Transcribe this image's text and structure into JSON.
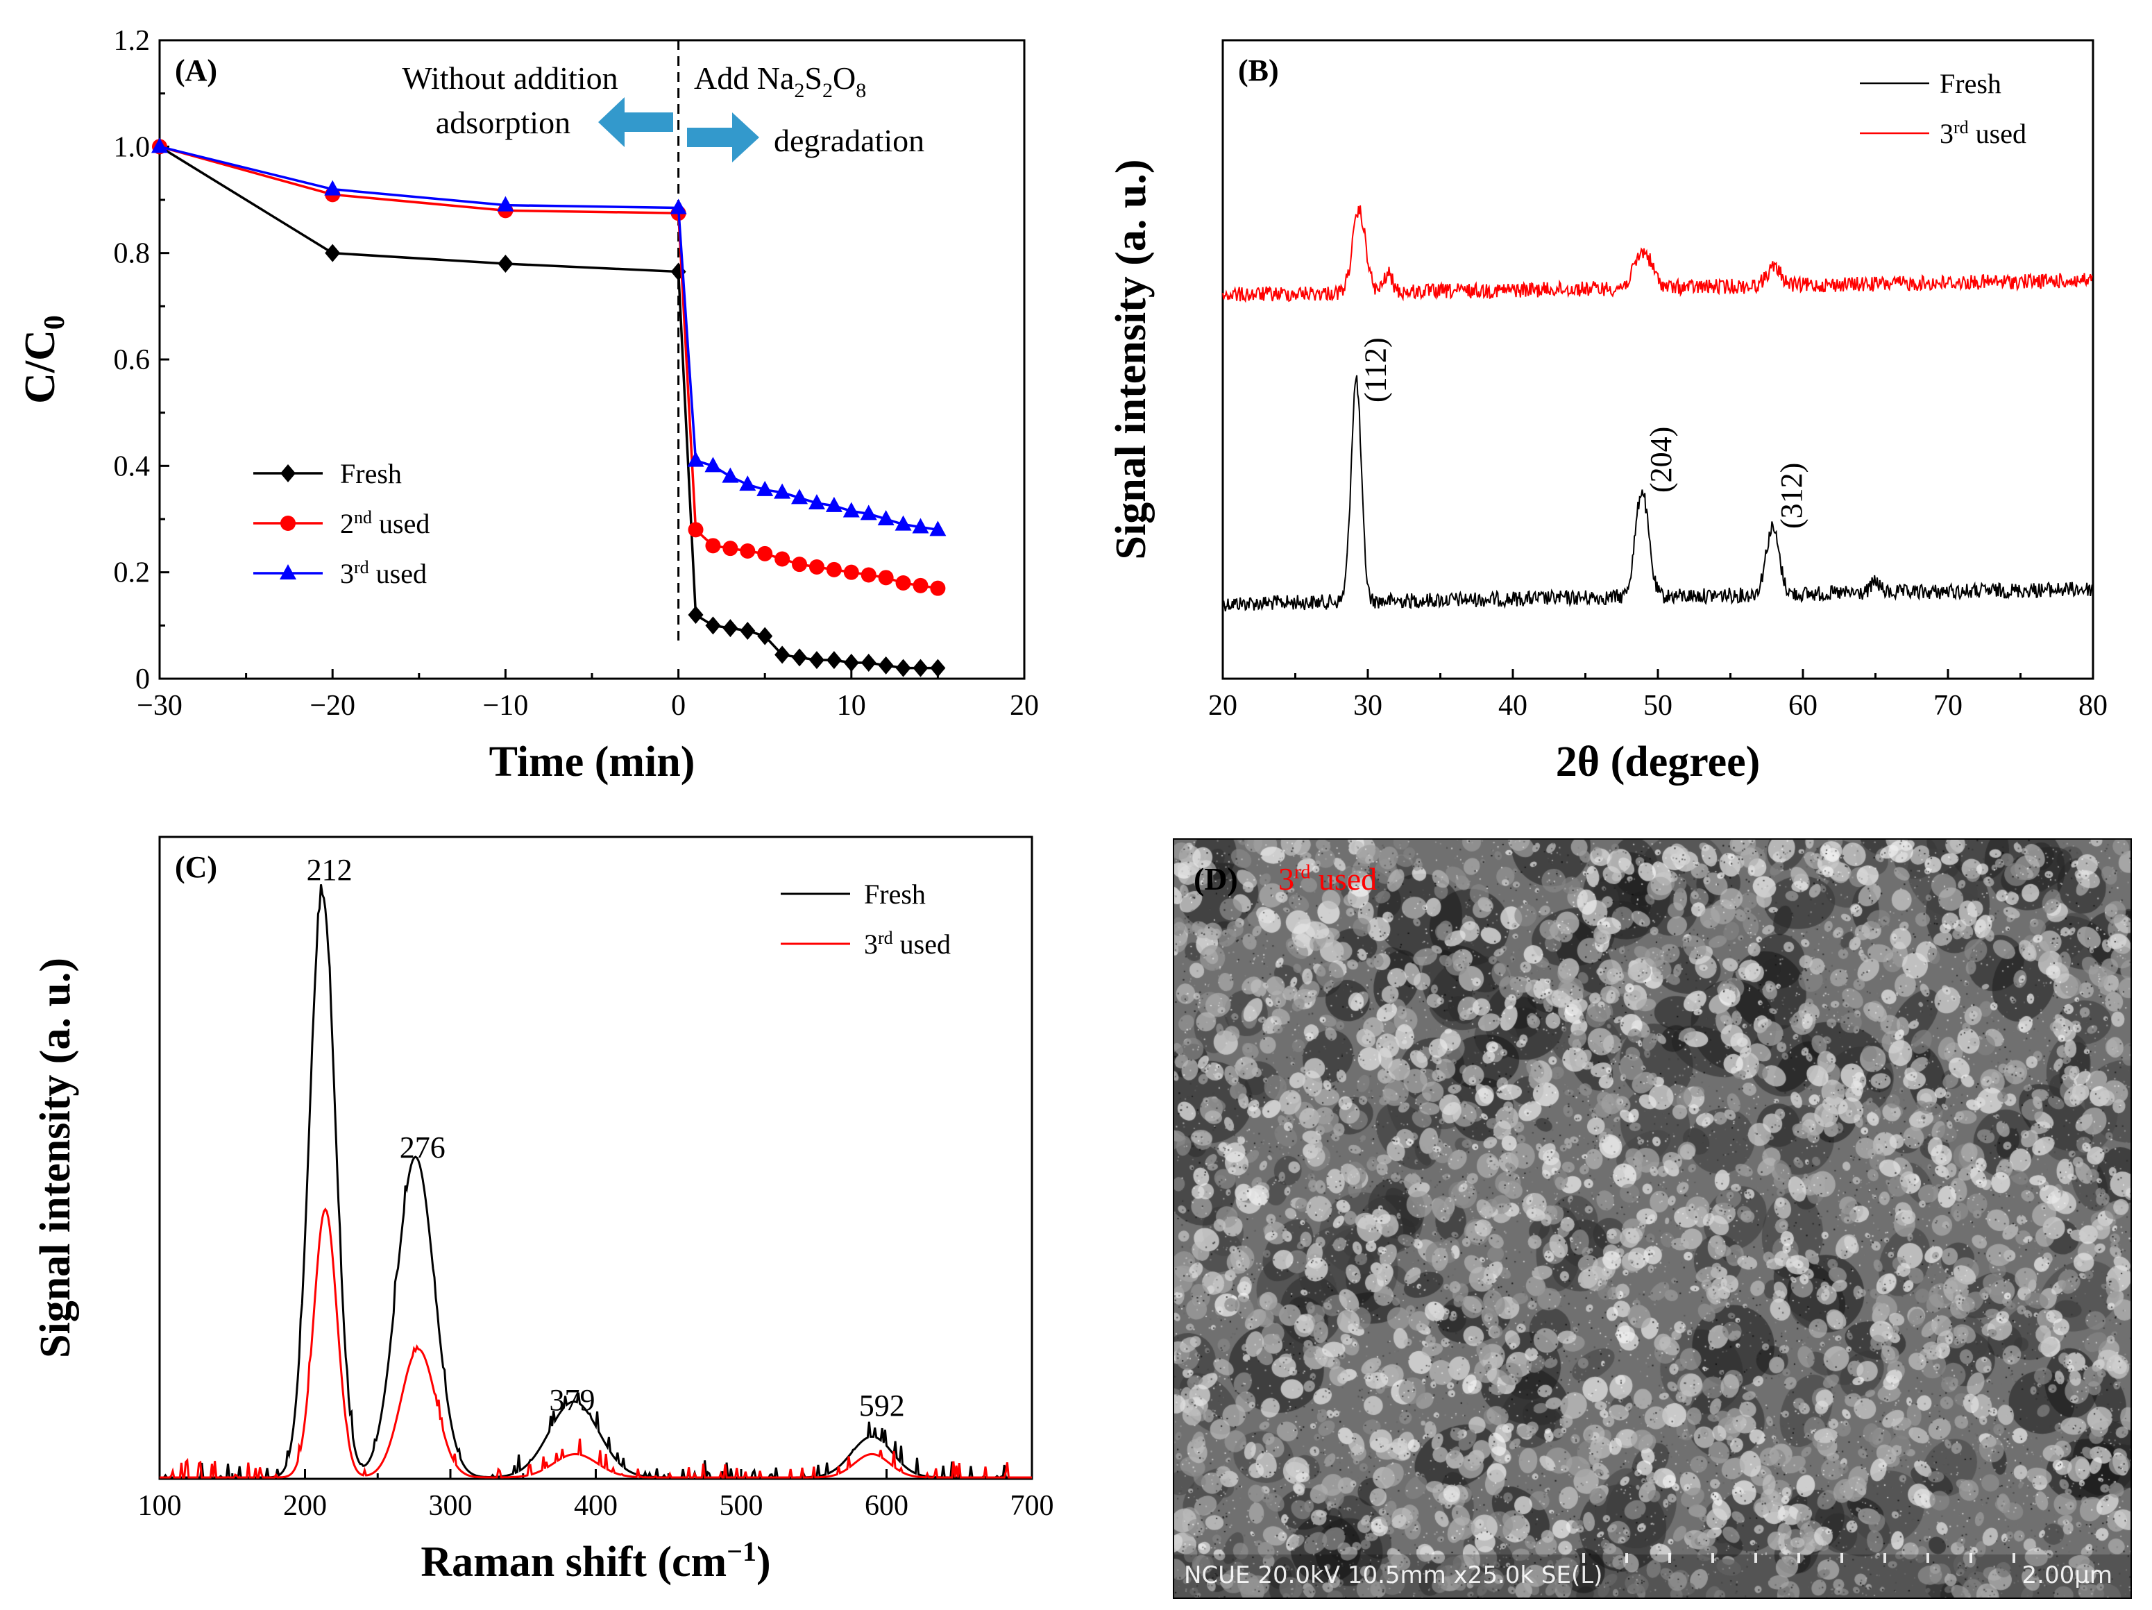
{
  "figure": {
    "colors": {
      "black": "#000000",
      "red": "#ff0000",
      "blue": "#0000ff",
      "arrow": "#3399cc"
    }
  },
  "chart_data": [
    {
      "panel": "(A)",
      "type": "line",
      "xlabel": "Time (min)",
      "ylabel": "C/C",
      "ylabel_sub": "0",
      "xlim": [
        -30,
        20
      ],
      "ylim": [
        0,
        1.2
      ],
      "xticks": [
        "−30",
        "−20",
        "−10",
        "0",
        "10",
        "20"
      ],
      "yticks": [
        "0",
        "0.2",
        "0.4",
        "0.6",
        "0.8",
        "1.0",
        "1.2"
      ],
      "annotation_left": {
        "line1": "Without addition",
        "line2": "adsorption"
      },
      "annotation_right": {
        "line1": "Add Na",
        "sub1": "2",
        "mid": "S",
        "sub2": "2",
        "tail": "O",
        "sub3": "8",
        "line2": "degradation"
      },
      "legend": [
        "Fresh",
        "2",
        "3"
      ],
      "legend_sup": [
        "",
        "nd",
        "rd"
      ],
      "legend_suffix": [
        "",
        " used",
        " used"
      ],
      "series": [
        {
          "name": "Fresh",
          "color": "#000000",
          "marker": "diamond",
          "x": [
            -30,
            -20,
            -10,
            0,
            1,
            2,
            3,
            4,
            5,
            6,
            7,
            8,
            9,
            10,
            11,
            12,
            13,
            14,
            15
          ],
          "y": [
            1.0,
            0.8,
            0.78,
            0.765,
            0.12,
            0.1,
            0.095,
            0.09,
            0.08,
            0.045,
            0.04,
            0.035,
            0.035,
            0.03,
            0.03,
            0.025,
            0.02,
            0.02,
            0.02
          ]
        },
        {
          "name": "2nd used",
          "color": "#ff0000",
          "marker": "circle",
          "x": [
            -30,
            -20,
            -10,
            0,
            1,
            2,
            3,
            4,
            5,
            6,
            7,
            8,
            9,
            10,
            11,
            12,
            13,
            14,
            15
          ],
          "y": [
            1.0,
            0.91,
            0.88,
            0.875,
            0.28,
            0.25,
            0.245,
            0.24,
            0.235,
            0.225,
            0.215,
            0.21,
            0.205,
            0.2,
            0.195,
            0.19,
            0.18,
            0.175,
            0.17
          ]
        },
        {
          "name": "3rd used",
          "color": "#0000ff",
          "marker": "triangle",
          "x": [
            -30,
            -20,
            -10,
            0,
            1,
            2,
            3,
            4,
            5,
            6,
            7,
            8,
            9,
            10,
            11,
            12,
            13,
            14,
            15
          ],
          "y": [
            1.0,
            0.92,
            0.89,
            0.885,
            0.41,
            0.4,
            0.38,
            0.365,
            0.355,
            0.35,
            0.34,
            0.33,
            0.325,
            0.315,
            0.31,
            0.3,
            0.29,
            0.285,
            0.28
          ]
        }
      ]
    },
    {
      "panel": "(B)",
      "type": "line",
      "xlabel": "2θ (degree)",
      "ylabel": "Signal intensity (a. u.)",
      "xlim": [
        20,
        80
      ],
      "xticks": [
        "20",
        "30",
        "40",
        "50",
        "60",
        "70",
        "80"
      ],
      "legend": [
        "Fresh",
        "3"
      ],
      "legend_sup": [
        "",
        "rd"
      ],
      "legend_suffix": [
        "",
        " used"
      ],
      "peak_labels": [
        "(112)",
        "(204)",
        "(312)"
      ],
      "peak_positions": [
        29.2,
        48.9,
        57.9
      ],
      "series": [
        {
          "name": "Fresh",
          "color": "#000000",
          "offset": 0,
          "noise": 1,
          "peaks": [
            {
              "x": 29.2,
              "h": 1.0,
              "w": 0.35
            },
            {
              "x": 48.9,
              "h": 0.48,
              "w": 0.45
            },
            {
              "x": 57.9,
              "h": 0.3,
              "w": 0.45
            },
            {
              "x": 65.0,
              "h": 0.05,
              "w": 0.3
            }
          ]
        },
        {
          "name": "3rd used",
          "color": "#ff0000",
          "offset": 1,
          "noise": 1,
          "peaks": [
            {
              "x": 29.4,
              "h": 0.45,
              "w": 0.45
            },
            {
              "x": 31.4,
              "h": 0.1,
              "w": 0.3
            },
            {
              "x": 49.0,
              "h": 0.2,
              "w": 0.6
            },
            {
              "x": 58.0,
              "h": 0.1,
              "w": 0.5
            }
          ]
        }
      ]
    },
    {
      "panel": "(C)",
      "type": "line",
      "xlabel": "Raman shift (cm",
      "xlabel_sup": "−1",
      "xlabel_tail": ")",
      "ylabel": "Signal intensity (a. u.)",
      "xlim": [
        100,
        700
      ],
      "xticks": [
        "100",
        "200",
        "300",
        "400",
        "500",
        "600",
        "700"
      ],
      "legend": [
        "Fresh",
        "3"
      ],
      "legend_sup": [
        "",
        "rd"
      ],
      "legend_suffix": [
        "",
        " used"
      ],
      "peak_labels": [
        "212",
        "276",
        "379",
        "592"
      ],
      "peak_positions": [
        212,
        276,
        379,
        592
      ],
      "series": [
        {
          "name": "Fresh",
          "color": "#000000",
          "peaks": [
            {
              "x": 212,
              "h": 1.0,
              "w": 9
            },
            {
              "x": 276,
              "h": 0.55,
              "w": 13
            },
            {
              "x": 385,
              "h": 0.13,
              "w": 17
            },
            {
              "x": 590,
              "h": 0.07,
              "w": 14
            }
          ]
        },
        {
          "name": "3rd used",
          "color": "#ff0000",
          "peaks": [
            {
              "x": 214,
              "h": 0.46,
              "w": 8
            },
            {
              "x": 278,
              "h": 0.22,
              "w": 12
            },
            {
              "x": 386,
              "h": 0.04,
              "w": 15
            },
            {
              "x": 590,
              "h": 0.04,
              "w": 12
            }
          ]
        }
      ]
    }
  ],
  "panel_d": {
    "panel": "(D)",
    "label": "3",
    "label_sup": "rd",
    "label_tail": " used",
    "info": "NCUE 20.0kV 10.5mm x25.0k SE(L)",
    "scale": "2.00μm"
  }
}
